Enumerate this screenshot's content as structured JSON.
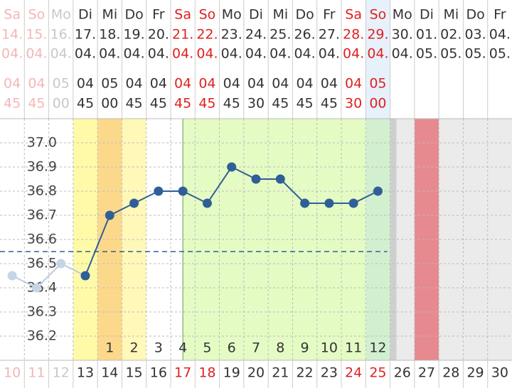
{
  "chart_data": {
    "type": "line",
    "columns": [
      {
        "weekday": "Sa",
        "day": "14.",
        "month": "04.",
        "hour": "04",
        "minute": "45",
        "cycle_day": 10
      },
      {
        "weekday": "So",
        "day": "15.",
        "month": "04.",
        "hour": "04",
        "minute": "45",
        "cycle_day": 11
      },
      {
        "weekday": "Mo",
        "day": "16.",
        "month": "04.",
        "hour": "05",
        "minute": "00",
        "cycle_day": 12
      },
      {
        "weekday": "Di",
        "day": "17.",
        "month": "04.",
        "hour": "04",
        "minute": "45",
        "cycle_day": 13
      },
      {
        "weekday": "Mi",
        "day": "18.",
        "month": "04.",
        "hour": "05",
        "minute": "00",
        "cycle_day": 14
      },
      {
        "weekday": "Do",
        "day": "19.",
        "month": "04.",
        "hour": "04",
        "minute": "45",
        "cycle_day": 15
      },
      {
        "weekday": "Fr",
        "day": "20.",
        "month": "04.",
        "hour": "04",
        "minute": "45",
        "cycle_day": 16
      },
      {
        "weekday": "Sa",
        "day": "21.",
        "month": "04.",
        "hour": "04",
        "minute": "45",
        "cycle_day": 17
      },
      {
        "weekday": "So",
        "day": "22.",
        "month": "04.",
        "hour": "04",
        "minute": "45",
        "cycle_day": 18
      },
      {
        "weekday": "Mo",
        "day": "23.",
        "month": "04.",
        "hour": "04",
        "minute": "45",
        "cycle_day": 19
      },
      {
        "weekday": "Di",
        "day": "24.",
        "month": "04.",
        "hour": "04",
        "minute": "30",
        "cycle_day": 20
      },
      {
        "weekday": "Mi",
        "day": "25.",
        "month": "04.",
        "hour": "04",
        "minute": "45",
        "cycle_day": 21
      },
      {
        "weekday": "Do",
        "day": "26.",
        "month": "04.",
        "hour": "04",
        "minute": "45",
        "cycle_day": 22
      },
      {
        "weekday": "Fr",
        "day": "27.",
        "month": "04.",
        "hour": "04",
        "minute": "45",
        "cycle_day": 23
      },
      {
        "weekday": "Sa",
        "day": "28.",
        "month": "04.",
        "hour": "04",
        "minute": "30",
        "cycle_day": 24
      },
      {
        "weekday": "So",
        "day": "29.",
        "month": "04.",
        "hour": "05",
        "minute": "00",
        "cycle_day": 25
      },
      {
        "weekday": "Mo",
        "day": "30.",
        "month": "04.",
        "cycle_day": 26
      },
      {
        "weekday": "Di",
        "day": "01.",
        "month": "05.",
        "cycle_day": 27
      },
      {
        "weekday": "Mi",
        "day": "02.",
        "month": "05.",
        "cycle_day": 28
      },
      {
        "weekday": "Do",
        "day": "03.",
        "month": "05.",
        "cycle_day": 29
      },
      {
        "weekday": "Fr",
        "day": "04.",
        "month": "05.",
        "cycle_day": 30
      }
    ],
    "values": [
      36.45,
      36.4,
      36.5,
      36.45,
      36.7,
      36.75,
      36.8,
      36.8,
      36.75,
      36.9,
      36.85,
      36.85,
      36.75,
      36.75,
      36.75,
      36.8,
      null,
      null,
      null,
      null,
      null
    ],
    "phase_labels": [
      null,
      null,
      null,
      null,
      1,
      2,
      3,
      4,
      5,
      6,
      7,
      8,
      9,
      10,
      11,
      12,
      null,
      null,
      null,
      null,
      null
    ],
    "coverline": 36.55,
    "color": "#2f5f96",
    "ylim": [
      36.1,
      37.1
    ],
    "yticks": [
      36.2,
      36.3,
      36.4,
      36.5,
      36.6,
      36.7,
      36.8,
      36.9,
      {
        "value": 37,
        "label": "37.0"
      }
    ],
    "grid": true
  }
}
